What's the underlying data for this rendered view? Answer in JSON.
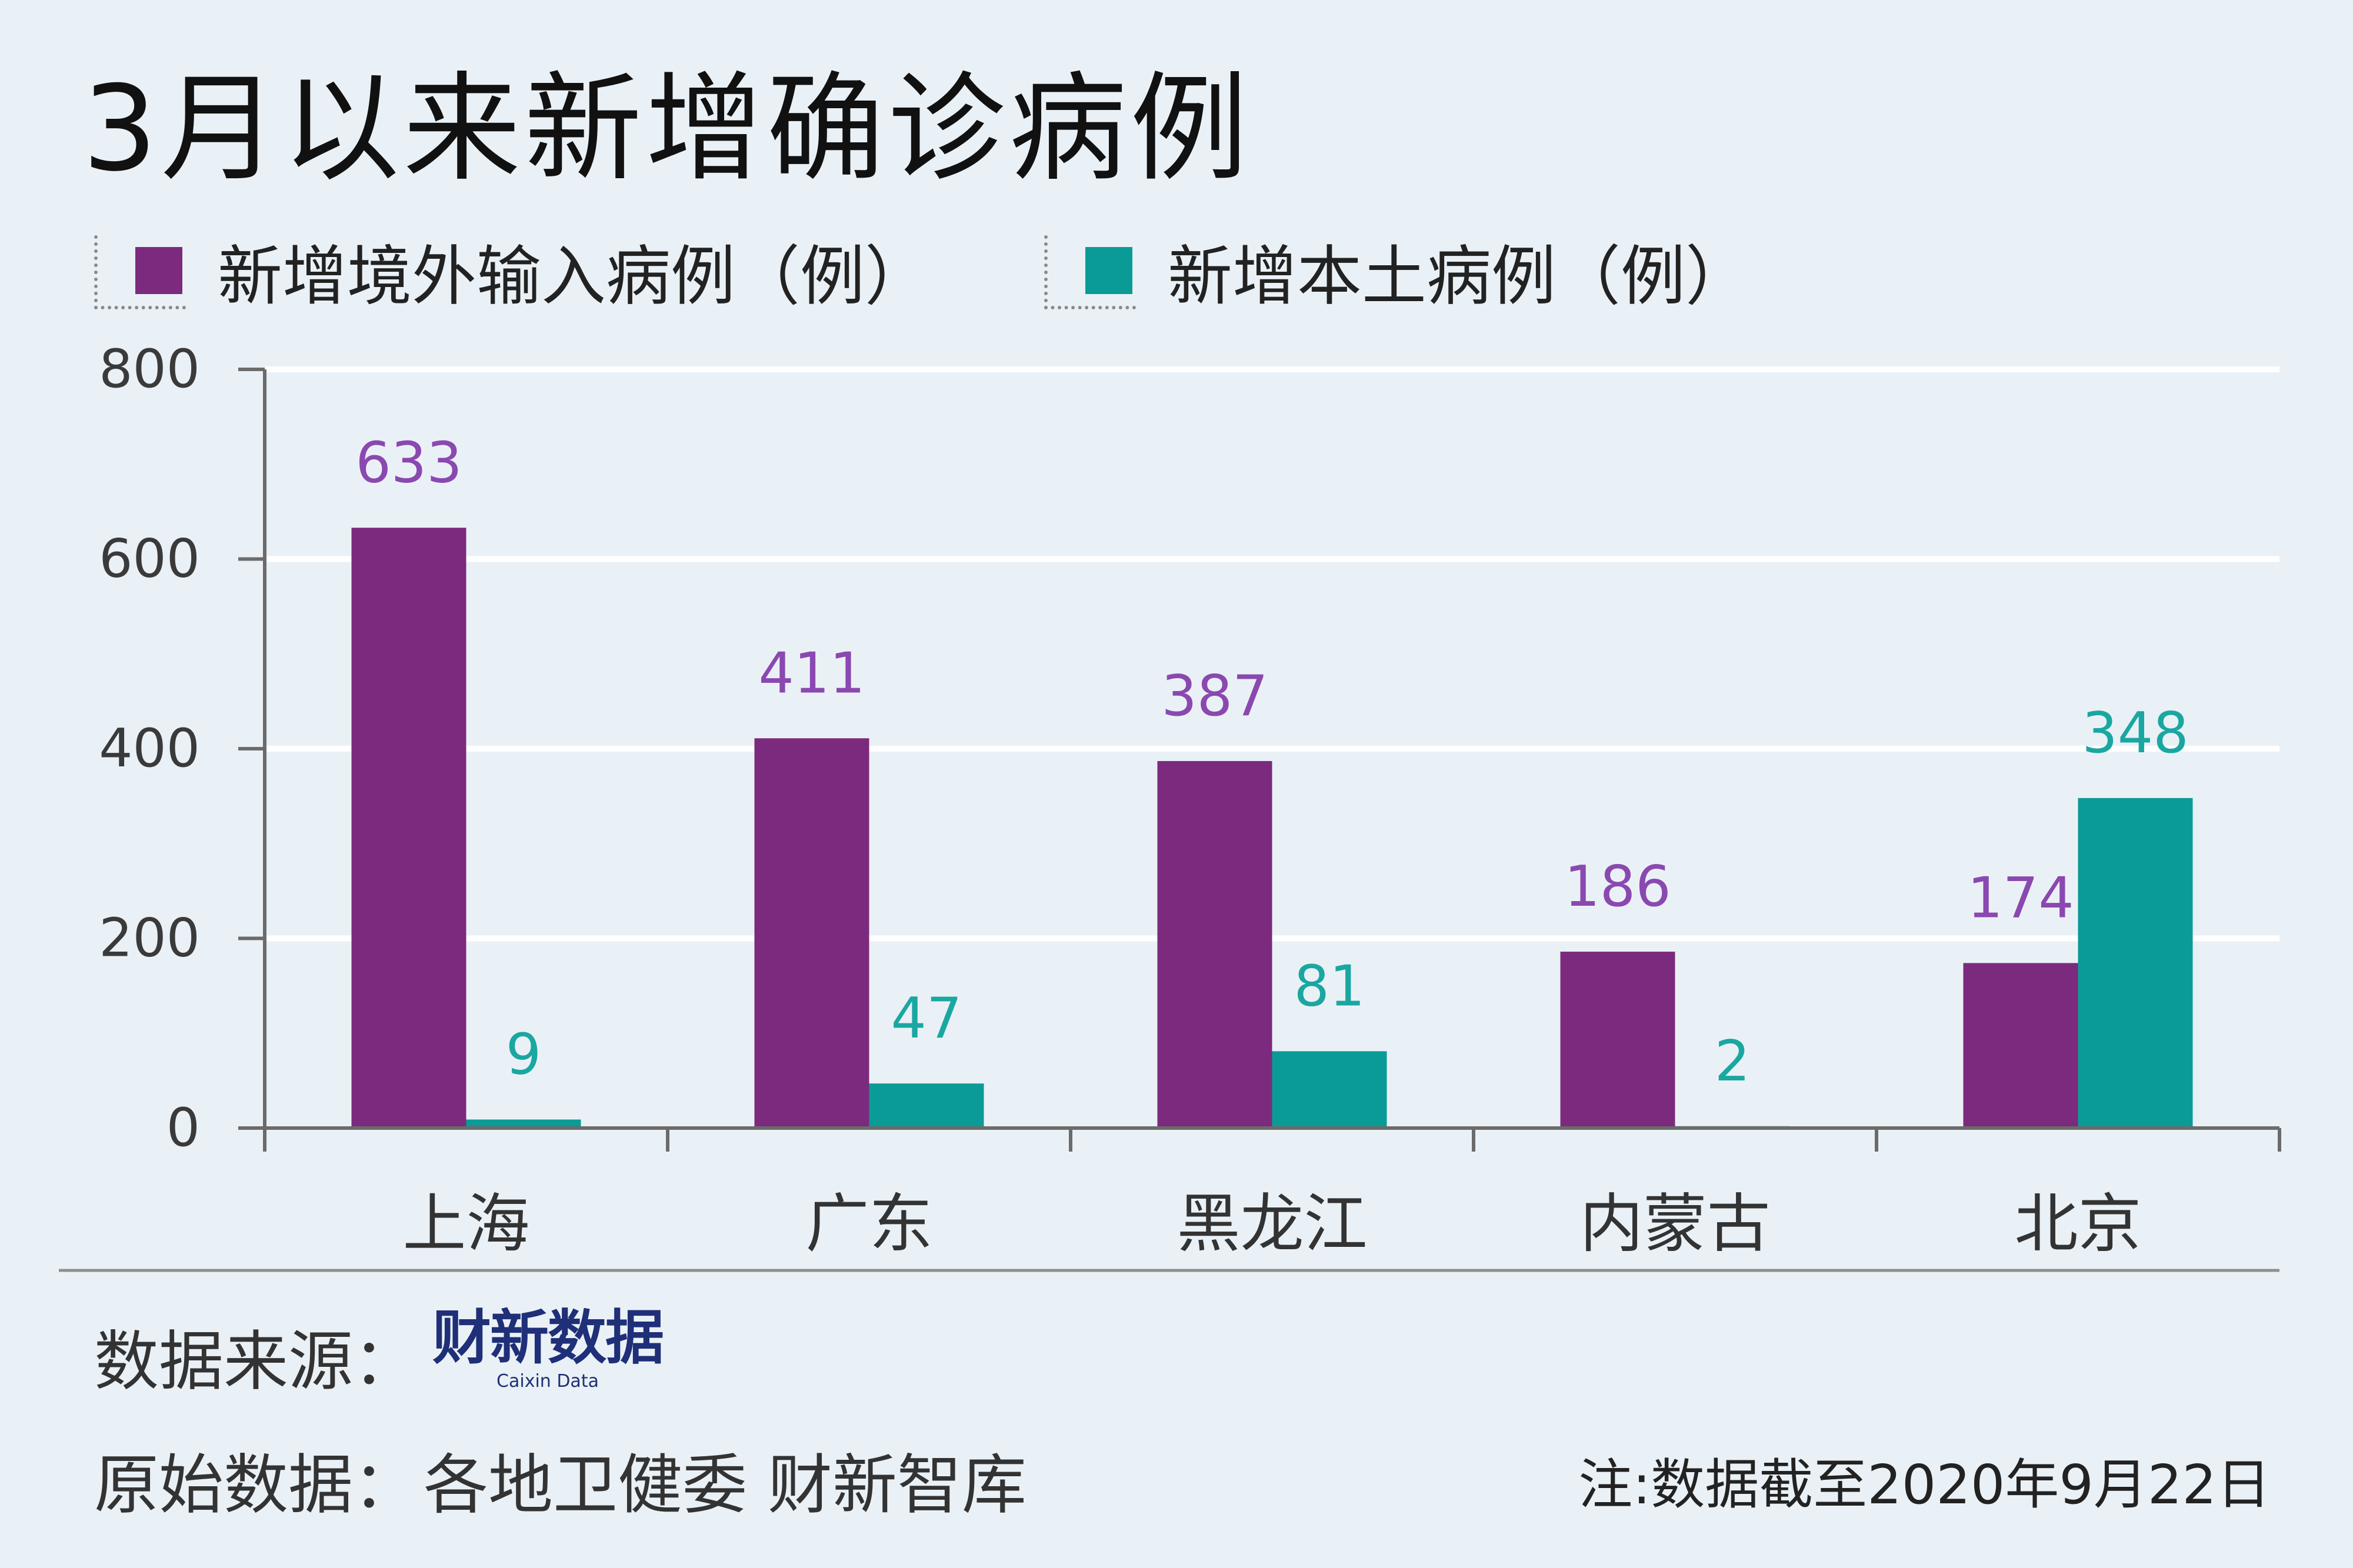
{
  "chart_data": {
    "type": "bar",
    "title": "3月以来新增确诊病例",
    "categories": [
      "上海",
      "广东",
      "黑龙江",
      "内蒙古",
      "北京"
    ],
    "series": [
      {
        "name": "新增境外输入病例（例）",
        "color": "#7b2a7e",
        "values": [
          633,
          411,
          387,
          186,
          174
        ]
      },
      {
        "name": "新增本土病例（例）",
        "color": "#0a9b96",
        "values": [
          9,
          47,
          81,
          2,
          348
        ]
      }
    ],
    "ylim": [
      0,
      800
    ],
    "yticks": [
      0,
      200,
      400,
      600,
      800
    ],
    "grid": true,
    "legend_position": "top-left"
  },
  "colors": {
    "label_purple": "#8a48b0",
    "label_teal": "#1aa7a1",
    "axis": "#6b6b6b"
  },
  "footer": {
    "source_label": "数据来源：",
    "source_logo_text": "财新数据",
    "source_logo_sub": "Caixin Data",
    "origin_label": "原始数据：",
    "origin_value": "各地卫健委 财新智库",
    "note": "注:数据截至2020年9月22日"
  }
}
